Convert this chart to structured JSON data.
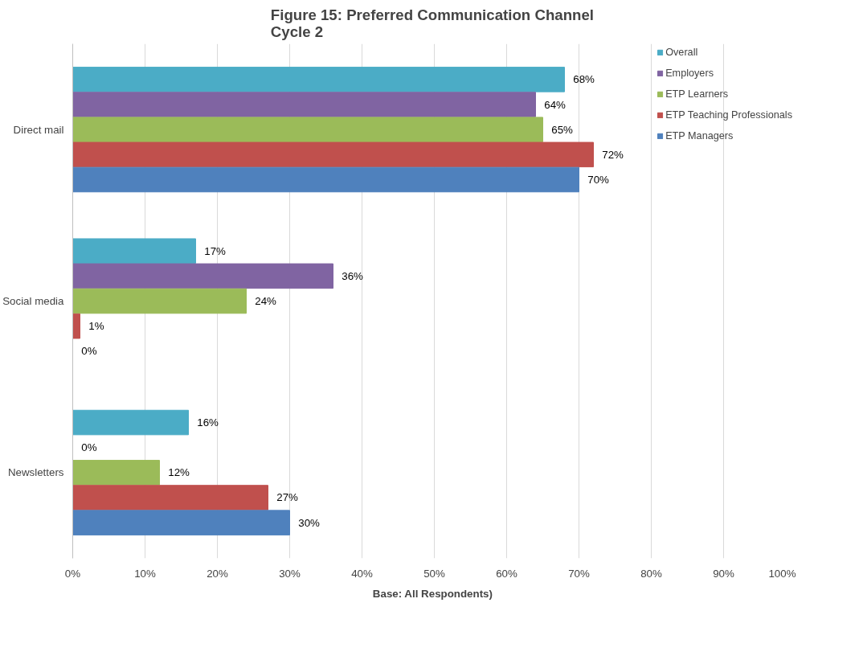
{
  "chart_data": {
    "type": "bar",
    "orientation": "horizontal",
    "title": "Figure 15:  Preferred Communication Channel\nCycle 2",
    "categories": [
      "Direct mail",
      "Social media",
      "Newsletters"
    ],
    "series": [
      {
        "name": "Overall",
        "color": "#4bacc6",
        "values": [
          68,
          17,
          16
        ],
        "value_labels": [
          "68%",
          "17%",
          "16%"
        ]
      },
      {
        "name": "Employers",
        "color": "#8064a2",
        "values": [
          64,
          36,
          0
        ],
        "value_labels": [
          "64%",
          "36%",
          "0%"
        ]
      },
      {
        "name": "ETP Learners",
        "color": "#9bbb59",
        "values": [
          65,
          24,
          12
        ],
        "value_labels": [
          "65%",
          "24%",
          "12%"
        ]
      },
      {
        "name": "ETP Teaching Professionals",
        "color": "#c0504d",
        "values": [
          72,
          1,
          27
        ],
        "value_labels": [
          "72%",
          "1%",
          "27%"
        ]
      },
      {
        "name": "ETP Managers",
        "color": "#4f81bd",
        "values": [
          70,
          0,
          30
        ],
        "value_labels": [
          "70%",
          "0%",
          "30%"
        ]
      }
    ],
    "xlim": [
      0,
      100
    ],
    "xticks": [
      {
        "value": 0,
        "label": "0%"
      },
      {
        "value": 10,
        "label": "10%"
      },
      {
        "value": 20,
        "label": "20%"
      },
      {
        "value": 30,
        "label": "30%"
      },
      {
        "value": 40,
        "label": "40%"
      },
      {
        "value": 50,
        "label": "50%"
      },
      {
        "value": 60,
        "label": "60%"
      },
      {
        "value": 70,
        "label": "70%"
      },
      {
        "value": 80,
        "label": "80%"
      },
      {
        "value": 90,
        "label": "90%"
      },
      {
        "value": 100,
        "label": "100%"
      }
    ],
    "grid": "x",
    "legend": "top right",
    "annotations": [
      "Base:  All Respondents)"
    ]
  }
}
